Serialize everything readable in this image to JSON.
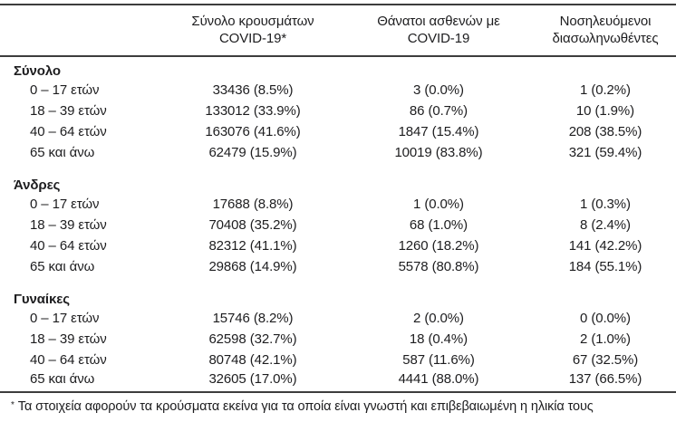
{
  "table": {
    "header": {
      "cols": [
        {
          "line1": "Σύνολο κρουσμάτων",
          "line2": "COVID-19*"
        },
        {
          "line1": "Θάνατοι ασθενών με",
          "line2": "COVID-19"
        },
        {
          "line1": "Νοσηλευόμενοι",
          "line2": "διασωληνωθέντες"
        }
      ]
    },
    "sections": [
      {
        "title": "Σύνολο",
        "rows": [
          {
            "age": "0 – 17 ετών",
            "cases": "33436 (8.5%)",
            "deaths": "3 (0.0%)",
            "intubated": "1 (0.2%)"
          },
          {
            "age": "18 – 39 ετών",
            "cases": "133012 (33.9%)",
            "deaths": "86 (0.7%)",
            "intubated": "10 (1.9%)"
          },
          {
            "age": "40 – 64 ετών",
            "cases": "163076 (41.6%)",
            "deaths": "1847 (15.4%)",
            "intubated": "208 (38.5%)"
          },
          {
            "age": "65 και άνω",
            "cases": "62479 (15.9%)",
            "deaths": "10019 (83.8%)",
            "intubated": "321 (59.4%)"
          }
        ]
      },
      {
        "title": "Άνδρες",
        "rows": [
          {
            "age": "0 – 17 ετών",
            "cases": "17688 (8.8%)",
            "deaths": "1 (0.0%)",
            "intubated": "1 (0.3%)"
          },
          {
            "age": "18 – 39 ετών",
            "cases": "70408 (35.2%)",
            "deaths": "68 (1.0%)",
            "intubated": "8 (2.4%)"
          },
          {
            "age": "40 – 64 ετών",
            "cases": "82312 (41.1%)",
            "deaths": "1260 (18.2%)",
            "intubated": "141 (42.2%)"
          },
          {
            "age": "65 και άνω",
            "cases": "29868 (14.9%)",
            "deaths": "5578 (80.8%)",
            "intubated": "184 (55.1%)"
          }
        ]
      },
      {
        "title": "Γυναίκες",
        "rows": [
          {
            "age": "0 – 17 ετών",
            "cases": "15746 (8.2%)",
            "deaths": "2 (0.0%)",
            "intubated": "0 (0.0%)"
          },
          {
            "age": "18 – 39 ετών",
            "cases": "62598 (32.7%)",
            "deaths": "18 (0.4%)",
            "intubated": "2 (1.0%)"
          },
          {
            "age": "40 – 64 ετών",
            "cases": "80748 (42.1%)",
            "deaths": "587 (11.6%)",
            "intubated": "67 (32.5%)"
          },
          {
            "age": "65 και άνω",
            "cases": "32605 (17.0%)",
            "deaths": "4441 (88.0%)",
            "intubated": "137 (66.5%)"
          }
        ]
      }
    ],
    "footnote": {
      "marker": "*",
      "text": "Τα στοιχεία αφορούν τα κρούσματα εκείνα για τα οποία είναι γνωστή και επιβεβαιωμένη η ηλικία τους"
    }
  }
}
